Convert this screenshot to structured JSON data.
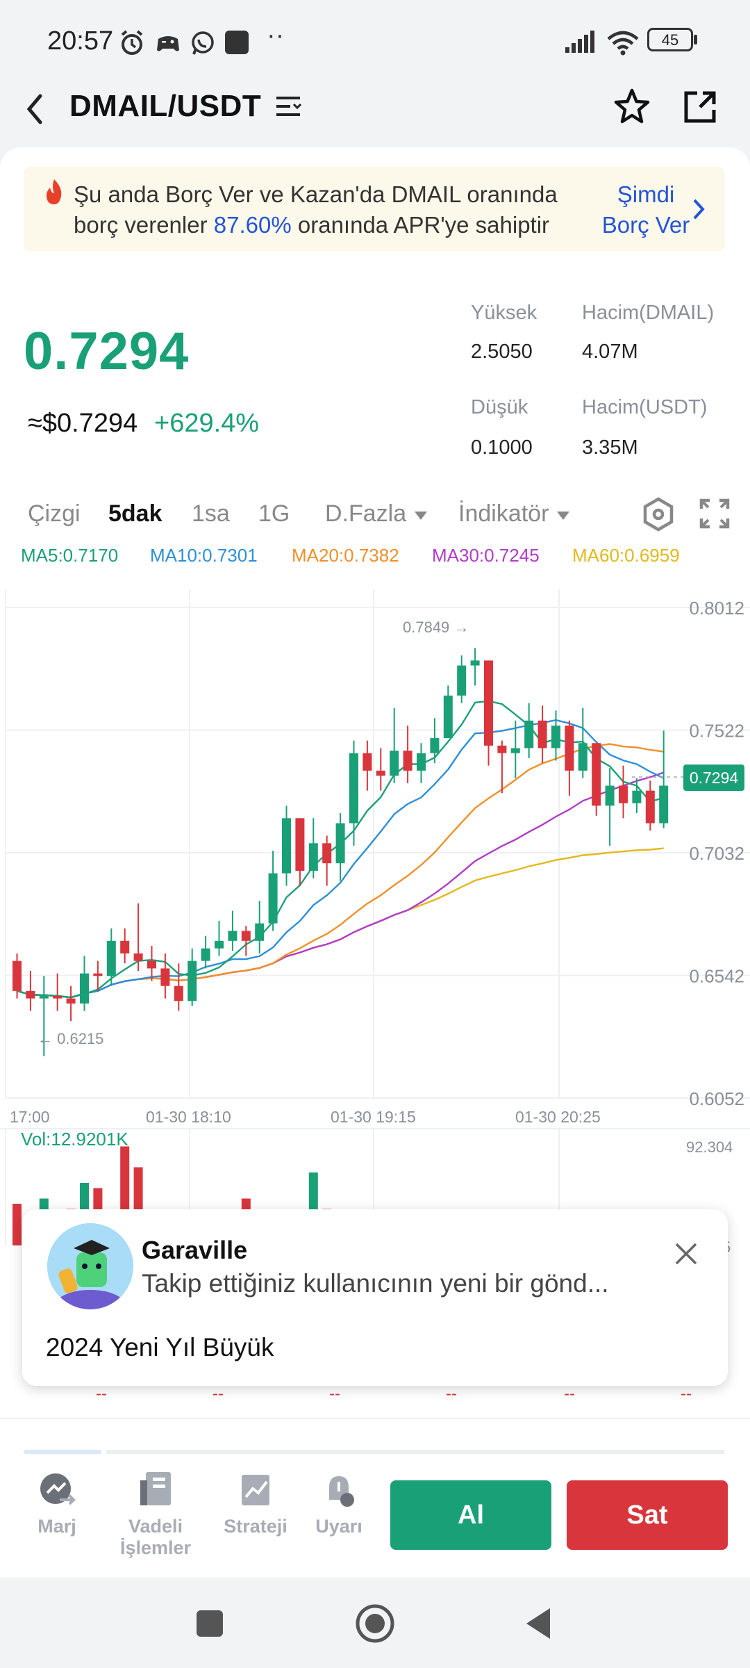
{
  "status_bar": {
    "time": "20:57",
    "dots": "··",
    "battery": "45"
  },
  "header": {
    "pair": "DMAIL/USDT"
  },
  "promo": {
    "text_before": "Şu anda Borç Ver ve Kazan'da DMAIL oranında borç verenler ",
    "rate": "87.60%",
    "text_after": " oranında APR'ye sahiptir",
    "cta_line1": "Şimdi",
    "cta_line2": "Borç Ver"
  },
  "price": {
    "last": "0.7294",
    "usd": "≈$0.7294",
    "change": "+629.4%"
  },
  "stats": {
    "high_label": "Yüksek",
    "high_value": "2.5050",
    "low_label": "Düşük",
    "low_value": "0.1000",
    "vol_base_label": "Hacim(DMAIL)",
    "vol_base_value": "4.07M",
    "vol_quote_label": "Hacim(USDT)",
    "vol_quote_value": "3.35M"
  },
  "tabs": {
    "line": "Çizgi",
    "m5": "5dak",
    "h1": "1sa",
    "d1": "1G",
    "more": "D.Fazla",
    "indicator": "İndikatör"
  },
  "ma_legend": {
    "ma5": "MA5:0.7170",
    "ma10": "MA10:0.7301",
    "ma20": "MA20:0.7382",
    "ma30": "MA30:0.7245",
    "ma60": "MA60:0.6959"
  },
  "colors": {
    "up": "#1aa077",
    "down": "#d9353d",
    "ma5": "#1aa077",
    "ma10": "#2d8fd8",
    "ma20": "#f0902a",
    "ma30": "#b03cc9",
    "ma60": "#e3b81c",
    "accent_blue": "#2354d8"
  },
  "chart_data": {
    "type": "candlestick",
    "y_ticks": [
      "0.8012",
      "0.7522",
      "0.7032",
      "0.6542",
      "0.6052"
    ],
    "ylim": [
      0.6052,
      0.8012
    ],
    "x_ticks": [
      "17:00",
      "01-30 18:10",
      "01-30 19:15",
      "01-30 20:25"
    ],
    "current_price_label": "0.7294",
    "high_marker": "0.7849 →",
    "low_marker": "← 0.6215",
    "candles": [
      [
        0.66,
        0.648,
        0.663,
        0.645
      ],
      [
        0.648,
        0.645,
        0.656,
        0.64
      ],
      [
        0.645,
        0.646,
        0.654,
        0.622
      ],
      [
        0.646,
        0.645,
        0.655,
        0.64
      ],
      [
        0.645,
        0.643,
        0.65,
        0.636
      ],
      [
        0.643,
        0.655,
        0.662,
        0.64
      ],
      [
        0.655,
        0.654,
        0.66,
        0.648
      ],
      [
        0.654,
        0.668,
        0.673,
        0.65
      ],
      [
        0.668,
        0.663,
        0.673,
        0.659
      ],
      [
        0.663,
        0.66,
        0.683,
        0.656
      ],
      [
        0.66,
        0.657,
        0.666,
        0.652
      ],
      [
        0.657,
        0.65,
        0.663,
        0.645
      ],
      [
        0.65,
        0.644,
        0.659,
        0.64
      ],
      [
        0.644,
        0.66,
        0.665,
        0.642
      ],
      [
        0.66,
        0.665,
        0.67,
        0.657
      ],
      [
        0.665,
        0.668,
        0.676,
        0.662
      ],
      [
        0.668,
        0.672,
        0.68,
        0.664
      ],
      [
        0.672,
        0.668,
        0.674,
        0.662
      ],
      [
        0.668,
        0.675,
        0.684,
        0.663
      ],
      [
        0.675,
        0.695,
        0.704,
        0.672
      ],
      [
        0.695,
        0.717,
        0.722,
        0.69
      ],
      [
        0.717,
        0.696,
        0.717,
        0.69
      ],
      [
        0.696,
        0.707,
        0.717,
        0.693
      ],
      [
        0.707,
        0.699,
        0.71,
        0.69
      ],
      [
        0.699,
        0.715,
        0.719,
        0.692
      ],
      [
        0.715,
        0.743,
        0.748,
        0.706
      ],
      [
        0.743,
        0.736,
        0.748,
        0.728
      ],
      [
        0.736,
        0.734,
        0.745,
        0.728
      ],
      [
        0.734,
        0.744,
        0.761,
        0.731
      ],
      [
        0.744,
        0.736,
        0.754,
        0.731
      ],
      [
        0.736,
        0.743,
        0.747,
        0.731
      ],
      [
        0.743,
        0.749,
        0.757,
        0.739
      ],
      [
        0.749,
        0.766,
        0.77,
        0.749
      ],
      [
        0.766,
        0.778,
        0.782,
        0.763
      ],
      [
        0.778,
        0.78,
        0.785,
        0.77
      ],
      [
        0.78,
        0.746,
        0.78,
        0.738
      ],
      [
        0.746,
        0.743,
        0.748,
        0.727
      ],
      [
        0.743,
        0.745,
        0.756,
        0.733
      ],
      [
        0.745,
        0.756,
        0.763,
        0.741
      ],
      [
        0.756,
        0.745,
        0.762,
        0.739
      ],
      [
        0.745,
        0.754,
        0.76,
        0.74
      ],
      [
        0.754,
        0.736,
        0.756,
        0.726
      ],
      [
        0.736,
        0.747,
        0.761,
        0.733
      ],
      [
        0.747,
        0.722,
        0.745,
        0.718
      ],
      [
        0.722,
        0.73,
        0.737,
        0.706
      ],
      [
        0.73,
        0.723,
        0.738,
        0.717
      ],
      [
        0.723,
        0.728,
        0.733,
        0.719
      ],
      [
        0.728,
        0.715,
        0.732,
        0.712
      ],
      [
        0.715,
        0.73,
        0.752,
        0.713
      ]
    ]
  },
  "volume": {
    "label": "Vol:12.9201K",
    "max": "92.304",
    "edge_value": "5",
    "bars": [
      0.4,
      0.1,
      0.45,
      0.15,
      0.35,
      0.6,
      0.55,
      0.05,
      0.95,
      0.75,
      0.1,
      0.05,
      0.05,
      0.05,
      0.05,
      0.05,
      0.05,
      0.45,
      0.1,
      0.15,
      0.1,
      0.1,
      0.7,
      0.35,
      0.1,
      0.05,
      0.05,
      0.05,
      0.05,
      0.05,
      0.05,
      0.05,
      0.05,
      0.05,
      0.05,
      0.15,
      0.1,
      0.05,
      0.05,
      0.05,
      0.05,
      0.05,
      0.05,
      0.05,
      0.05,
      0.05,
      0.05,
      0.05,
      0.05
    ]
  },
  "notification": {
    "name": "Garaville",
    "message": "Takip ettiğiniz kullanıcının yeni bir gönd...",
    "body": "2024 Yeni Yıl Büyük"
  },
  "bottom_bar": {
    "margin": "Marj",
    "futures_line1": "Vadeli",
    "futures_line2": "İşlemler",
    "strategy": "Strateji",
    "alert": "Uyarı",
    "buy": "Al",
    "sell": "Sat"
  },
  "hidden_row": {
    "placeholder": "--"
  }
}
